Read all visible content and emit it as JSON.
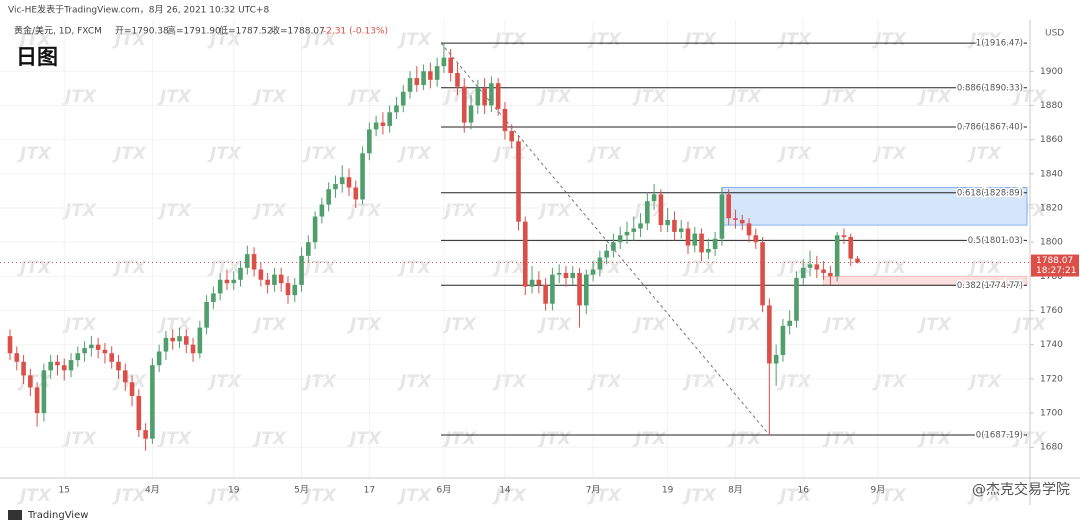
{
  "header": {
    "publisher": "Vic-HE发表于TradingView.com，8月 26, 2021 10:32 UTC+8",
    "symbol": "黄金/美元, 1D, FXCM",
    "ohlc": [
      "开=1790.38",
      "高=1791.90",
      "低=1787.52",
      "收=1788.07"
    ],
    "change": "-2.31 (-0.13%)"
  },
  "chart_data": {
    "type": "candlestick",
    "title": "日图",
    "categories": [
      null,
      null,
      null,
      null,
      null,
      null,
      null,
      null,
      "15",
      null,
      null,
      null,
      null,
      null,
      null,
      null,
      null,
      null,
      null,
      null,
      null,
      "4月",
      null,
      null,
      null,
      null,
      null,
      null,
      null,
      null,
      null,
      null,
      null,
      "19",
      null,
      null,
      null,
      null,
      null,
      null,
      null,
      null,
      null,
      "5月",
      null,
      null,
      null,
      null,
      null,
      null,
      null,
      null,
      null,
      "17",
      null,
      null,
      null,
      null,
      null,
      null,
      null,
      null,
      null,
      null,
      "6月",
      null,
      null,
      null,
      null,
      null,
      null,
      null,
      null,
      "14",
      null,
      null,
      null,
      null,
      null,
      null,
      null,
      null,
      null,
      null,
      null,
      null,
      "7月",
      null,
      null,
      null,
      null,
      null,
      null,
      null,
      null,
      null,
      null,
      "19",
      null,
      null,
      null,
      null,
      null,
      null,
      null,
      null,
      null,
      "8月",
      null,
      null,
      null,
      null,
      null,
      null,
      null,
      null,
      null,
      "16",
      null,
      null,
      null,
      null,
      null,
      null,
      null,
      null,
      null,
      null,
      "9月"
    ],
    "open": [
      1745,
      1735,
      1730,
      1722,
      1715,
      1700,
      1725,
      1730,
      1728,
      1725,
      1731,
      1735,
      1738,
      1740,
      1737,
      1735,
      1730,
      1725,
      1718,
      1710,
      1690,
      1685,
      1728,
      1736,
      1744,
      1742,
      1745,
      1740,
      1735,
      1750,
      1765,
      1770,
      1778,
      1776,
      1778,
      1785,
      1793,
      1784,
      1778,
      1775,
      1781,
      1776,
      1769,
      1775,
      1792,
      1800,
      1815,
      1822,
      1831,
      1834,
      1838,
      1832,
      1825,
      1852,
      1866,
      1870,
      1868,
      1876,
      1880,
      1888,
      1896,
      1892,
      1900,
      1895,
      1903,
      1908,
      1899,
      1891,
      1870,
      1880,
      1890,
      1880,
      1893,
      1878,
      1865,
      1859,
      1812,
      1774,
      1778,
      1775,
      1764,
      1781,
      1782,
      1779,
      1782,
      1763,
      1781,
      1784,
      1791,
      1795,
      1800,
      1804,
      1806,
      1808,
      1811,
      1824,
      1828,
      1810,
      1813,
      1806,
      1808,
      1798,
      1805,
      1794,
      1796,
      1802,
      1828,
      1814,
      1813,
      1811,
      1804,
      1800,
      1763,
      1729,
      1734,
      1751,
      1754,
      1779,
      1785,
      1787,
      1784,
      1782,
      1780,
      1804,
      1803,
      1790.38,
      null,
      null,
      null
    ],
    "high": [
      1749,
      1739,
      1734,
      1726,
      1718,
      1729,
      1734,
      1734,
      1732,
      1735,
      1739,
      1742,
      1745,
      1744,
      1741,
      1739,
      1734,
      1729,
      1722,
      1714,
      1694,
      1732,
      1740,
      1748,
      1749,
      1750,
      1749,
      1744,
      1754,
      1769,
      1774,
      1782,
      1784,
      1783,
      1789,
      1798,
      1797,
      1788,
      1782,
      1785,
      1785,
      1780,
      1779,
      1797,
      1804,
      1818,
      1826,
      1835,
      1839,
      1845,
      1843,
      1836,
      1856,
      1870,
      1874,
      1876,
      1880,
      1885,
      1892,
      1900,
      1903,
      1904,
      1905,
      1908,
      1916,
      1913,
      1905,
      1896,
      1886,
      1895,
      1896,
      1897,
      1896,
      1882,
      1869,
      1862,
      1815,
      1786,
      1783,
      1779,
      1785,
      1787,
      1786,
      1786,
      1785,
      1784,
      1789,
      1795,
      1799,
      1805,
      1809,
      1812,
      1815,
      1817,
      1829,
      1834,
      1831,
      1820,
      1818,
      1813,
      1812,
      1809,
      1808,
      1802,
      1806,
      1832,
      1831,
      1819,
      1816,
      1814,
      1808,
      1803,
      1767,
      1740,
      1755,
      1760,
      1783,
      1790,
      1795,
      1792,
      1789,
      1786,
      1806,
      1808,
      1805,
      1791.9,
      null,
      null,
      null
    ],
    "low": [
      1731,
      1725,
      1717,
      1710,
      1692,
      1695,
      1720,
      1722,
      1719,
      1721,
      1727,
      1730,
      1733,
      1732,
      1729,
      1726,
      1720,
      1713,
      1704,
      1686,
      1678,
      1682,
      1724,
      1731,
      1737,
      1738,
      1735,
      1730,
      1732,
      1746,
      1761,
      1766,
      1772,
      1772,
      1774,
      1781,
      1780,
      1774,
      1770,
      1771,
      1771,
      1764,
      1765,
      1771,
      1788,
      1796,
      1811,
      1818,
      1826,
      1829,
      1827,
      1820,
      1822,
      1848,
      1862,
      1863,
      1864,
      1872,
      1876,
      1884,
      1888,
      1889,
      1890,
      1891,
      1899,
      1894,
      1886,
      1864,
      1866,
      1875,
      1875,
      1876,
      1874,
      1860,
      1855,
      1807,
      1769,
      1770,
      1770,
      1760,
      1760,
      1776,
      1774,
      1775,
      1750,
      1758,
      1777,
      1780,
      1787,
      1791,
      1796,
      1799,
      1801,
      1803,
      1807,
      1819,
      1806,
      1806,
      1801,
      1802,
      1793,
      1794,
      1789,
      1790,
      1792,
      1798,
      1810,
      1808,
      1807,
      1800,
      1796,
      1759,
      1687,
      1716,
      1730,
      1746,
      1750,
      1775,
      1780,
      1779,
      1778,
      1775,
      1777,
      1799,
      1786,
      1787.52,
      null,
      null,
      null
    ],
    "close": [
      1735,
      1730,
      1722,
      1715,
      1700,
      1725,
      1730,
      1728,
      1725,
      1731,
      1735,
      1738,
      1740,
      1737,
      1735,
      1730,
      1725,
      1718,
      1710,
      1690,
      1685,
      1728,
      1736,
      1744,
      1742,
      1745,
      1740,
      1735,
      1750,
      1765,
      1770,
      1778,
      1776,
      1778,
      1785,
      1793,
      1784,
      1778,
      1775,
      1781,
      1776,
      1769,
      1775,
      1792,
      1800,
      1815,
      1822,
      1831,
      1834,
      1838,
      1832,
      1825,
      1852,
      1866,
      1870,
      1868,
      1876,
      1880,
      1888,
      1896,
      1892,
      1900,
      1895,
      1903,
      1908,
      1899,
      1891,
      1870,
      1880,
      1890,
      1880,
      1893,
      1878,
      1865,
      1859,
      1812,
      1774,
      1778,
      1775,
      1764,
      1781,
      1782,
      1779,
      1782,
      1763,
      1781,
      1784,
      1791,
      1795,
      1800,
      1804,
      1806,
      1808,
      1811,
      1824,
      1828,
      1810,
      1813,
      1806,
      1808,
      1798,
      1805,
      1794,
      1796,
      1802,
      1828,
      1814,
      1813,
      1811,
      1804,
      1800,
      1763,
      1729,
      1734,
      1751,
      1754,
      1779,
      1785,
      1787,
      1784,
      1782,
      1780,
      1804,
      1803,
      1790.38,
      1788.07,
      null,
      null,
      null
    ],
    "up_color": "#4f9e6c",
    "down_color": "#dc4f49",
    "ylim": [
      1662,
      1930
    ],
    "yticks": [
      1680,
      1700,
      1720,
      1740,
      1760,
      1780,
      1800,
      1820,
      1840,
      1860,
      1880,
      1900
    ],
    "y_unit": "USD",
    "grid": true,
    "fib_levels": [
      {
        "value": 1916.47,
        "label": "1(1916.47)"
      },
      {
        "value": 1890.33,
        "label": "0.886(1890.33)"
      },
      {
        "value": 1867.4,
        "label": "0.786(1867.40)"
      },
      {
        "value": 1828.89,
        "label": "0.618(1828.89)"
      },
      {
        "value": 1801.03,
        "label": "0.5(1801.03)"
      },
      {
        "value": 1774.77,
        "label": "0.382(1774.77)"
      },
      {
        "value": 1687.19,
        "label": "0(1687.19)"
      }
    ],
    "zones": [
      {
        "color": "#d6e6fa",
        "ylim": [
          1810,
          1832
        ]
      },
      {
        "color": "#fbdede",
        "ylim": [
          1774.77,
          1780
        ]
      }
    ],
    "last_price_timer": "18:27:21",
    "watermark": "JTX"
  },
  "footer": {
    "logo": "TradingView",
    "credit": "@杰克交易学院"
  }
}
